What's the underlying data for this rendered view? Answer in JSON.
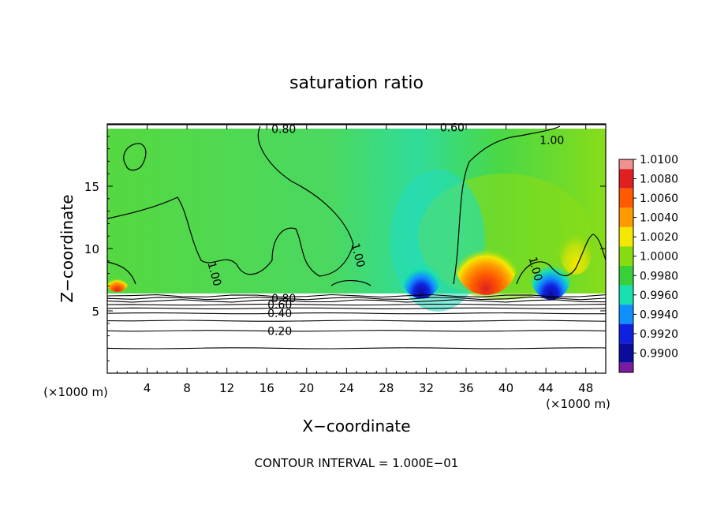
{
  "chart_data": {
    "type": "heatmap",
    "title": "saturation ratio",
    "xlabel": "X−coordinate",
    "ylabel": "Z−coordinate",
    "x_unit_left": "(×1000 m)",
    "x_unit_right": "(×1000 m)",
    "xlim": [
      0,
      50
    ],
    "ylim": [
      0,
      20
    ],
    "xticks": [
      4,
      8,
      12,
      16,
      20,
      24,
      28,
      32,
      36,
      40,
      44,
      48
    ],
    "yticks": [
      5,
      10,
      15
    ],
    "footer": "CONTOUR INTERVAL = 1.000E−01",
    "colorbar": {
      "levels": [
        "1.0100",
        "1.0080",
        "1.0060",
        "1.0040",
        "1.0020",
        "1.0000",
        "0.9980",
        "0.9960",
        "0.9940",
        "0.9920",
        "0.9900"
      ],
      "colors": [
        "#f09090",
        "#e02020",
        "#ff5a00",
        "#ff9a00",
        "#f4e800",
        "#86dc10",
        "#38d038",
        "#18e0b0",
        "#1090ff",
        "#1020e0",
        "#0c0c9a",
        "#7a1aa0"
      ]
    },
    "contour_labels": [
      {
        "text": "0.20",
        "x": 17.3,
        "y": 3.4
      },
      {
        "text": "0.40",
        "x": 17.3,
        "y": 4.8
      },
      {
        "text": "0.60",
        "x": 17.3,
        "y": 5.5
      },
      {
        "text": "0.80",
        "x": 17.7,
        "y": 6.0
      },
      {
        "text": "1.00",
        "x": 10.4,
        "y": 8.2
      },
      {
        "text": "1.00",
        "x": 24.8,
        "y": 9.7
      },
      {
        "text": "1.00",
        "x": 42.6,
        "y": 8.6
      },
      {
        "text": "1.00",
        "x": 44.6,
        "y": 18.7
      },
      {
        "text": "0.80",
        "x": 17.7,
        "y": 19.6
      },
      {
        "text": "0.60",
        "x": 34.6,
        "y": 19.7
      }
    ],
    "hotspots": [
      {
        "name": "positive-anomaly",
        "x": 38,
        "z": 7.6,
        "value": 1.01
      },
      {
        "name": "positive-anomaly",
        "x": 47,
        "z": 9.0,
        "value": 1.003
      },
      {
        "name": "positive-anomaly",
        "x": 1.0,
        "z": 6.9,
        "value": 1.008
      },
      {
        "name": "negative-anomaly",
        "x": 31.5,
        "z": 7.0,
        "value": 0.99
      },
      {
        "name": "negative-anomaly",
        "x": 44.5,
        "z": 6.9,
        "value": 0.994
      }
    ]
  }
}
